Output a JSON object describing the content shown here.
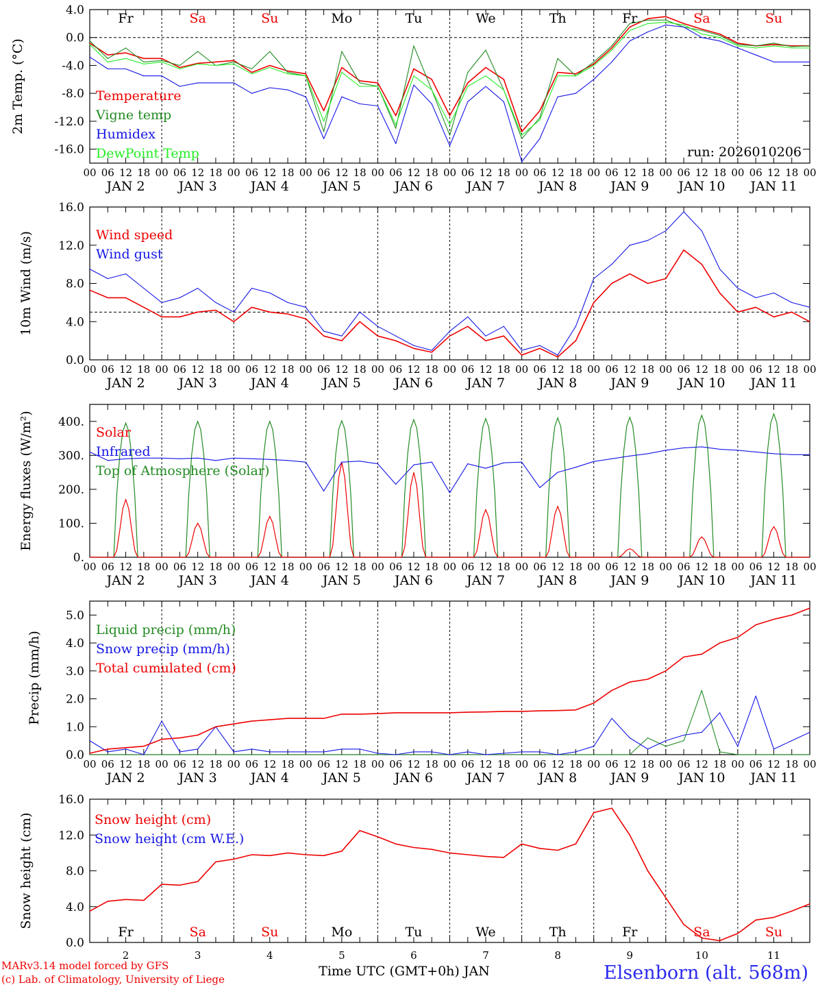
{
  "colors": {
    "red": "#ee0000",
    "green": "#228b22",
    "blue": "#1515e6",
    "lightgreen": "#22ee22",
    "black": "#000000",
    "title_blue": "#2a2aee"
  },
  "days": {
    "names": [
      "Fr",
      "Sa",
      "Su",
      "Mo",
      "Tu",
      "We",
      "Th",
      "Fr",
      "Sa",
      "Su"
    ],
    "weekend": [
      false,
      true,
      true,
      false,
      false,
      false,
      false,
      false,
      true,
      true
    ],
    "dates": [
      "JAN  2",
      "JAN  3",
      "JAN  4",
      "JAN  5",
      "JAN  6",
      "JAN  7",
      "JAN  8",
      "JAN  9",
      "JAN 10",
      "JAN 11"
    ],
    "numbers": [
      "2",
      "3",
      "4",
      "5",
      "6",
      "7",
      "8",
      "9",
      "10",
      "11"
    ],
    "hours": [
      "00",
      "06",
      "12",
      "18"
    ],
    "final_hour": "00"
  },
  "footer": {
    "model": "MARv3.14 model forced by GFS",
    "copyright": "(c) Lab. of Climatology, University of Liege",
    "xlabel": "Time UTC (GMT+0h) JAN",
    "station": "Elsenborn (alt. 568m)"
  },
  "chart_data": [
    {
      "type": "line",
      "id": "temp",
      "ylabel": "2m Temp. (°C)",
      "ylim": [
        -18,
        4
      ],
      "yticks": [
        "4.0",
        "0.0",
        "-4.0",
        "-8.0",
        "-12.0",
        "-16.0"
      ],
      "ytick_values": [
        4,
        0,
        -4,
        -8,
        -12,
        -16
      ],
      "ref_line": 0,
      "annotation": "run: 2026010206",
      "x_hours": [
        0,
        6,
        12,
        18,
        24,
        30,
        36,
        42,
        48,
        54,
        60,
        66,
        72,
        78,
        84,
        90,
        96,
        102,
        108,
        114,
        120,
        126,
        132,
        138,
        144,
        150,
        156,
        162,
        168,
        174,
        180,
        186,
        192,
        198,
        204,
        210,
        216,
        222,
        228,
        234,
        240
      ],
      "series": [
        {
          "name": "Temperature",
          "color": "red",
          "values": [
            -0.8,
            -2.5,
            -2.2,
            -3.0,
            -3.0,
            -4.3,
            -3.7,
            -3.5,
            -3.3,
            -5.0,
            -4.0,
            -4.8,
            -5.2,
            -10.5,
            -4.3,
            -6.2,
            -6.5,
            -11.2,
            -4.5,
            -6.0,
            -11.2,
            -6.5,
            -4.3,
            -6.0,
            -13.5,
            -10.5,
            -5.0,
            -5.2,
            -3.8,
            -1.5,
            1.5,
            2.7,
            3.0,
            2.0,
            1.2,
            0.5,
            -0.8,
            -1.2,
            -1.0,
            -1.2,
            -1.2
          ]
        },
        {
          "name": "Vigne temp",
          "color": "green",
          "values": [
            -0.5,
            -3.0,
            -1.5,
            -3.5,
            -3.3,
            -4.0,
            -2.0,
            -4.0,
            -3.5,
            -4.5,
            -2.0,
            -5.0,
            -5.5,
            -13.5,
            -2.0,
            -6.5,
            -7.0,
            -13.0,
            -1.2,
            -7.5,
            -14.0,
            -5.0,
            -1.8,
            -7.5,
            -14.5,
            -11.5,
            -3.0,
            -5.5,
            -3.5,
            -1.2,
            2.0,
            2.5,
            2.5,
            1.5,
            1.0,
            0.3,
            -1.0,
            -1.2,
            -0.8,
            -1.3,
            -1.2
          ]
        },
        {
          "name": "Humidex",
          "color": "blue",
          "values": [
            -2.8,
            -4.5,
            -4.5,
            -5.5,
            -5.5,
            -7.0,
            -6.5,
            -6.5,
            -6.5,
            -8.0,
            -7.2,
            -7.5,
            -8.5,
            -14.5,
            -8.5,
            -9.5,
            -9.8,
            -15.2,
            -6.8,
            -9.5,
            -15.5,
            -9.2,
            -7.0,
            -9.2,
            -17.8,
            -14.5,
            -8.5,
            -8.0,
            -6.0,
            -3.5,
            -0.5,
            0.8,
            1.8,
            1.5,
            0.0,
            -0.5,
            -1.5,
            -2.5,
            -3.5,
            -3.5,
            -3.5
          ]
        },
        {
          "name": "DewPoint Temp",
          "color": "lightgreen",
          "values": [
            -1.0,
            -3.5,
            -3.0,
            -3.8,
            -3.5,
            -4.5,
            -3.8,
            -4.0,
            -3.8,
            -5.2,
            -4.3,
            -5.2,
            -5.5,
            -12.0,
            -5.0,
            -7.0,
            -7.0,
            -12.5,
            -5.5,
            -7.5,
            -12.5,
            -7.0,
            -5.5,
            -7.5,
            -14.0,
            -11.8,
            -5.5,
            -5.5,
            -4.0,
            -1.8,
            1.0,
            2.0,
            2.2,
            1.8,
            0.5,
            0.0,
            -1.2,
            -1.5,
            -1.2,
            -1.5,
            -1.5
          ]
        }
      ]
    },
    {
      "type": "line",
      "id": "wind",
      "ylabel": "10m Wind (m/s)",
      "ylim": [
        0,
        16
      ],
      "yticks": [
        "16.0",
        "12.0",
        "8.0",
        "4.0",
        "0.0"
      ],
      "ytick_values": [
        16,
        12,
        8,
        4,
        0
      ],
      "ref_line": 5,
      "x_hours": [
        0,
        6,
        12,
        18,
        24,
        30,
        36,
        42,
        48,
        54,
        60,
        66,
        72,
        78,
        84,
        90,
        96,
        102,
        108,
        114,
        120,
        126,
        132,
        138,
        144,
        150,
        156,
        162,
        168,
        174,
        180,
        186,
        192,
        198,
        204,
        210,
        216,
        222,
        228,
        234,
        240
      ],
      "series": [
        {
          "name": "Wind speed",
          "color": "red",
          "values": [
            7.3,
            6.5,
            6.5,
            5.5,
            4.5,
            4.5,
            5.0,
            5.2,
            4.0,
            5.5,
            5.0,
            4.8,
            4.3,
            2.5,
            2.0,
            4.0,
            2.5,
            2.0,
            1.2,
            0.8,
            2.5,
            3.5,
            2.0,
            2.5,
            0.5,
            1.2,
            0.3,
            2.0,
            6.0,
            8.0,
            9.0,
            8.0,
            8.5,
            11.5,
            10.0,
            7.0,
            5.0,
            5.5,
            4.5,
            5.0,
            4.0
          ]
        },
        {
          "name": "Wind gust",
          "color": "blue",
          "values": [
            9.5,
            8.5,
            9.0,
            7.5,
            6.0,
            6.5,
            7.5,
            6.0,
            5.0,
            7.5,
            7.0,
            6.0,
            5.5,
            3.0,
            2.5,
            5.0,
            3.5,
            2.5,
            1.5,
            1.0,
            3.0,
            4.5,
            2.5,
            3.5,
            1.0,
            1.5,
            0.5,
            3.5,
            8.5,
            10.0,
            12.0,
            12.5,
            13.5,
            15.5,
            13.5,
            9.5,
            7.5,
            6.5,
            7.0,
            6.0,
            5.5
          ]
        }
      ]
    },
    {
      "type": "line",
      "id": "energy",
      "ylabel": "Energy fluxes (W/m²)",
      "ylim": [
        0,
        450
      ],
      "yticks": [
        "400.",
        "300.",
        "200.",
        "100.",
        "0."
      ],
      "ytick_values": [
        400,
        300,
        200,
        100,
        0
      ],
      "sun_hours": [
        8,
        16
      ],
      "daily_solar_peak": [
        170,
        100,
        120,
        280,
        250,
        140,
        150,
        25,
        60,
        90
      ],
      "daily_toa_peak": [
        395,
        400,
        400,
        402,
        405,
        408,
        410,
        412,
        418,
        422
      ],
      "x_hours": [
        0,
        6,
        12,
        18,
        24,
        30,
        36,
        42,
        48,
        54,
        60,
        66,
        72,
        78,
        84,
        90,
        96,
        102,
        108,
        114,
        120,
        126,
        132,
        138,
        144,
        150,
        156,
        162,
        168,
        174,
        180,
        186,
        192,
        198,
        204,
        210,
        216,
        222,
        228,
        234,
        240
      ],
      "series": [
        {
          "name": "Solar",
          "color": "red",
          "values": []
        },
        {
          "name": "Infrared",
          "color": "blue",
          "values": [
            310,
            285,
            290,
            292,
            292,
            290,
            292,
            285,
            292,
            290,
            288,
            285,
            280,
            195,
            280,
            283,
            275,
            215,
            272,
            280,
            190,
            275,
            262,
            278,
            280,
            205,
            250,
            265,
            282,
            290,
            298,
            305,
            315,
            322,
            325,
            318,
            315,
            310,
            305,
            302,
            302
          ]
        },
        {
          "name": "Top of Atmosphere (Solar)",
          "color": "green",
          "values": []
        }
      ]
    },
    {
      "type": "line",
      "id": "precip",
      "ylabel": "Precip (mm/h)",
      "ylim": [
        0,
        5.5
      ],
      "yticks": [
        "5.0",
        "4.0",
        "3.0",
        "2.0",
        "1.0",
        "0.0"
      ],
      "ytick_values": [
        5,
        4,
        3,
        2,
        1,
        0
      ],
      "x_hours": [
        0,
        6,
        12,
        18,
        24,
        30,
        36,
        42,
        48,
        54,
        60,
        66,
        72,
        78,
        84,
        90,
        96,
        102,
        108,
        114,
        120,
        126,
        132,
        138,
        144,
        150,
        156,
        162,
        168,
        174,
        180,
        186,
        192,
        198,
        204,
        210,
        216,
        222,
        228,
        234,
        240
      ],
      "series": [
        {
          "name": "Liquid precip (mm/h)",
          "color": "green",
          "values": [
            0,
            0,
            0,
            0,
            0,
            0,
            0,
            0,
            0,
            0,
            0,
            0,
            0,
            0,
            0,
            0,
            0,
            0,
            0,
            0,
            0,
            0,
            0,
            0,
            0,
            0,
            0,
            0,
            0,
            0,
            0,
            0.6,
            0.3,
            0.5,
            2.3,
            0.1,
            0,
            0,
            0,
            0,
            0
          ]
        },
        {
          "name": "Snow precip (mm/h)",
          "color": "blue",
          "values": [
            0.5,
            0.1,
            0.2,
            0.0,
            1.2,
            0.1,
            0.2,
            1.0,
            0.1,
            0.2,
            0.1,
            0.1,
            0.1,
            0.1,
            0.2,
            0.2,
            0.05,
            0.0,
            0.1,
            0.1,
            0.0,
            0.1,
            0.0,
            0.05,
            0.1,
            0.1,
            0.0,
            0.1,
            0.3,
            1.3,
            0.6,
            0.2,
            0.5,
            0.7,
            0.8,
            1.5,
            0.3,
            2.1,
            0.2,
            0.5,
            0.8
          ]
        },
        {
          "name": "Total cumulated (cm)",
          "color": "red",
          "values": [
            0.05,
            0.2,
            0.25,
            0.3,
            0.55,
            0.6,
            0.7,
            1.0,
            1.1,
            1.2,
            1.25,
            1.3,
            1.3,
            1.3,
            1.45,
            1.45,
            1.47,
            1.5,
            1.5,
            1.5,
            1.5,
            1.52,
            1.53,
            1.55,
            1.55,
            1.57,
            1.58,
            1.6,
            1.85,
            2.3,
            2.6,
            2.7,
            3.0,
            3.5,
            3.6,
            4.0,
            4.2,
            4.65,
            4.85,
            5.0,
            5.25
          ]
        }
      ]
    },
    {
      "type": "line",
      "id": "snow",
      "ylabel": "Snow height (cm)",
      "ylim": [
        0,
        16
      ],
      "yticks": [
        "16.0",
        "12.0",
        "8.0",
        "4.0",
        "0.0"
      ],
      "ytick_values": [
        16,
        12,
        8,
        4,
        0
      ],
      "x_hours": [
        0,
        6,
        12,
        18,
        24,
        30,
        36,
        42,
        48,
        54,
        60,
        66,
        72,
        78,
        84,
        90,
        96,
        102,
        108,
        114,
        120,
        126,
        132,
        138,
        144,
        150,
        156,
        162,
        168,
        174,
        180,
        186,
        192,
        198,
        204,
        210,
        216,
        222,
        228,
        234,
        240
      ],
      "series": [
        {
          "name": "Snow height (cm)",
          "color": "red",
          "values": [
            3.5,
            4.6,
            4.8,
            4.7,
            6.5,
            6.4,
            6.8,
            9.0,
            9.3,
            9.8,
            9.7,
            10.0,
            9.8,
            9.7,
            10.2,
            12.5,
            11.8,
            11.0,
            10.6,
            10.4,
            10.0,
            9.8,
            9.6,
            9.5,
            11.0,
            10.5,
            10.3,
            11.0,
            14.5,
            15.0,
            12.0,
            8.0,
            5.0,
            2.0,
            0.5,
            0.2,
            1.0,
            2.5,
            2.8,
            3.5,
            4.3
          ]
        },
        {
          "name": "Snow height (cm W.E.)",
          "color": "blue",
          "values": []
        }
      ]
    }
  ]
}
